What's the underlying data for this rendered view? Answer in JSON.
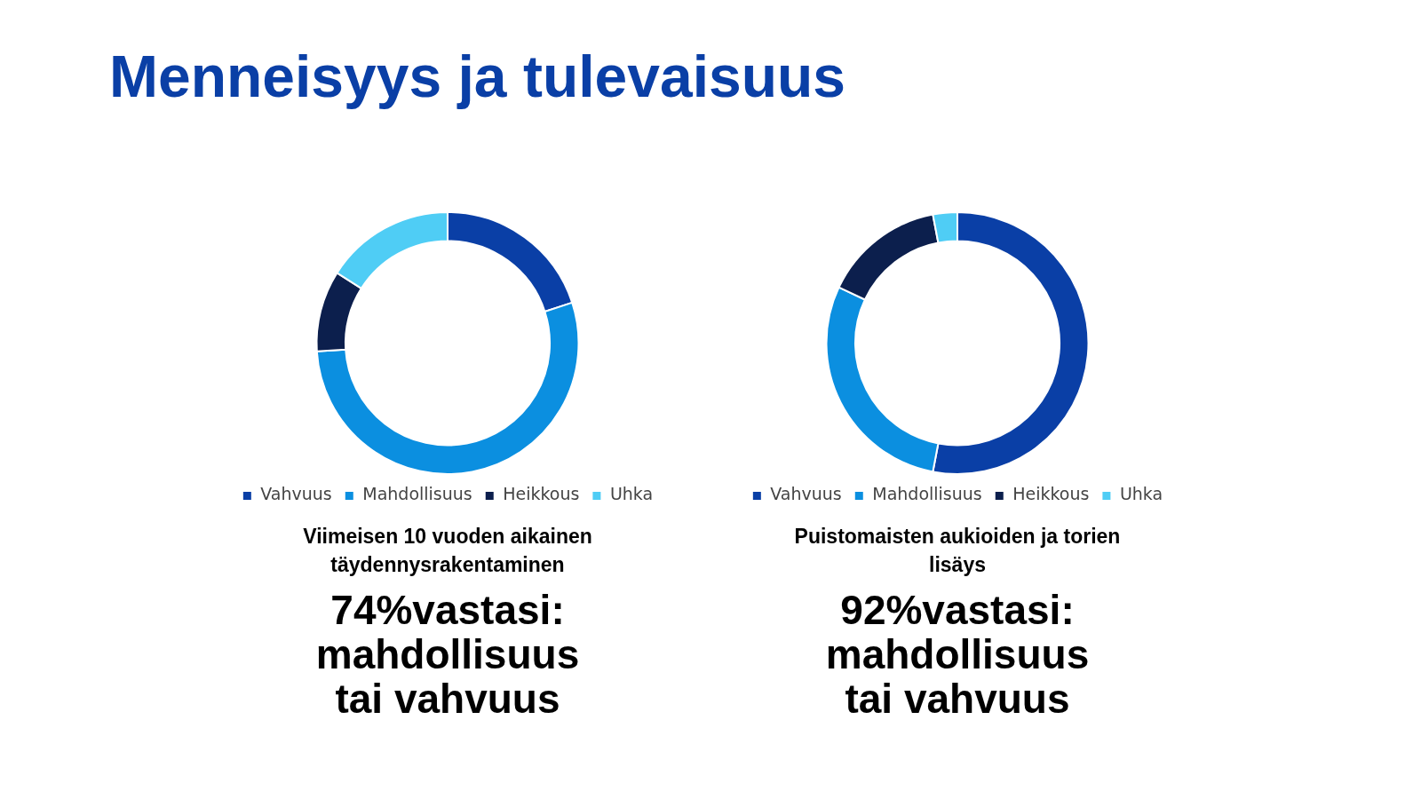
{
  "chart_data": [
    {
      "type": "donut",
      "title": "Menneisyys ja tulevaisuus",
      "categories": [
        "Vahvuus",
        "Mahdollisuus",
        "Heikkous",
        "Uhka"
      ],
      "values": [
        20,
        54,
        10,
        16
      ],
      "colors": [
        "#0a3fa6",
        "#0b8fe0",
        "#0c1f4d",
        "#4fcdf5"
      ],
      "legend": "bottom",
      "annotations": [
        "Viimeisen 10 vuoden aikainen täydennysrakentaminen",
        "74%vastasi: mahdollisuus tai vahvuus"
      ]
    },
    {
      "type": "donut",
      "categories": [
        "Vahvuus",
        "Mahdollisuus",
        "Heikkous",
        "Uhka"
      ],
      "values": [
        53,
        29,
        15,
        3
      ],
      "colors": [
        "#0a3fa6",
        "#0b8fe0",
        "#0c1f4d",
        "#4fcdf5"
      ],
      "legend": "bottom",
      "annotations": [
        "Puistomaisten aukioiden ja torien lisäys",
        "92%vastasi: mahdollisuus tai vahvuus"
      ]
    }
  ]
}
